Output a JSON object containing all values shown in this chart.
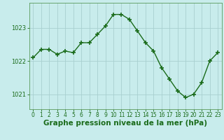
{
  "x": [
    0,
    1,
    2,
    3,
    4,
    5,
    6,
    7,
    8,
    9,
    10,
    11,
    12,
    13,
    14,
    15,
    16,
    17,
    18,
    19,
    20,
    21,
    22,
    23
  ],
  "y": [
    1022.1,
    1022.35,
    1022.35,
    1022.2,
    1022.3,
    1022.25,
    1022.55,
    1022.55,
    1022.8,
    1023.05,
    1023.4,
    1023.4,
    1023.25,
    1022.9,
    1022.55,
    1022.3,
    1021.8,
    1021.45,
    1021.1,
    1020.9,
    1021.0,
    1021.35,
    1022.0,
    1022.25
  ],
  "line_color": "#1a6b1a",
  "marker": "+",
  "marker_size": 4,
  "marker_lw": 1.2,
  "bg_color": "#c8ecec",
  "grid_color": "#a8d0d0",
  "xlabel": "Graphe pression niveau de la mer (hPa)",
  "xlabel_fontsize": 7.5,
  "yticks": [
    1021,
    1022,
    1023
  ],
  "ylim": [
    1020.55,
    1023.75
  ],
  "xlim": [
    -0.5,
    23.5
  ],
  "xtick_labels": [
    "0",
    "1",
    "2",
    "3",
    "4",
    "5",
    "6",
    "7",
    "8",
    "9",
    "10",
    "11",
    "12",
    "13",
    "14",
    "15",
    "16",
    "17",
    "18",
    "19",
    "20",
    "21",
    "22",
    "23"
  ],
  "tick_fontsize": 5.5,
  "ytick_fontsize": 6.0,
  "line_width": 1.0
}
